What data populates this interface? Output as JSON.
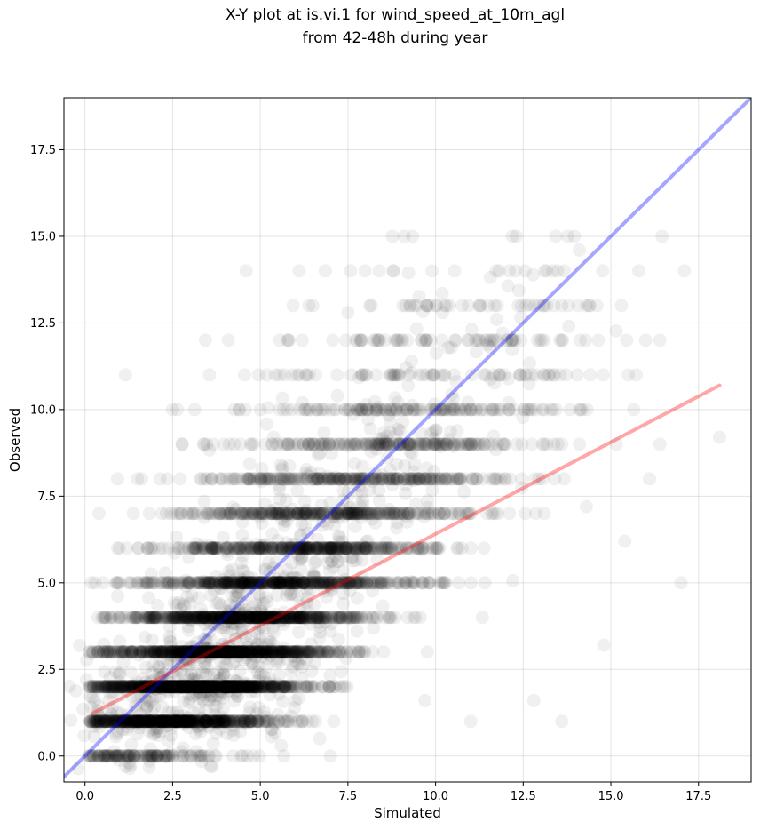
{
  "chart_data": {
    "type": "scatter",
    "title_lines": [
      "X-Y plot at is.vi.1 for wind_speed_at_10m_agl",
      "from 42-48h during year"
    ],
    "xlabel": "Simulated",
    "ylabel": "Observed",
    "xlim": [
      -0.6,
      19.0
    ],
    "ylim": [
      -0.75,
      19.0
    ],
    "xticks": [
      0.0,
      2.5,
      5.0,
      7.5,
      10.0,
      12.5,
      15.0,
      17.5
    ],
    "yticks": [
      0.0,
      2.5,
      5.0,
      7.5,
      10.0,
      12.5,
      15.0,
      17.5
    ],
    "grid": true,
    "point_color": "#000000",
    "point_alpha": 0.06,
    "observed_levels": [
      0,
      1,
      2,
      3,
      4,
      5,
      6,
      7,
      8,
      9,
      10,
      11,
      12,
      13,
      14,
      15
    ],
    "level_weights": [
      2,
      10,
      14,
      12,
      10,
      8,
      6,
      5,
      4,
      3,
      2,
      1,
      1,
      0.6,
      0.3,
      0.1
    ],
    "series": [
      {
        "kind": "scatter",
        "points": [
          [
            1.2,
            1.0
          ],
          [
            2.4,
            1.0
          ],
          [
            3.1,
            1.0
          ],
          [
            0.8,
            2.0
          ],
          [
            2.6,
            2.0
          ],
          [
            3.4,
            2.0
          ],
          [
            4.1,
            2.0
          ],
          [
            3.0,
            3.0
          ],
          [
            4.5,
            3.0
          ],
          [
            5.6,
            3.0
          ],
          [
            4.2,
            4.0
          ],
          [
            6.0,
            4.0
          ],
          [
            7.3,
            4.0
          ],
          [
            5.4,
            5.0
          ],
          [
            6.8,
            5.0
          ],
          [
            8.2,
            5.0
          ],
          [
            6.3,
            6.0
          ],
          [
            8.0,
            6.0
          ],
          [
            9.4,
            6.0
          ],
          [
            7.6,
            7.0
          ],
          [
            8.7,
            7.0
          ],
          [
            9.1,
            8.0
          ],
          [
            10.3,
            8.0
          ],
          [
            9.5,
            9.0
          ],
          [
            11.2,
            9.0
          ],
          [
            10.0,
            10.0
          ],
          [
            11.8,
            10.0
          ],
          [
            12.4,
            11.0
          ],
          [
            12.9,
            12.0
          ],
          [
            13.6,
            13.0
          ],
          [
            14.1,
            14.6
          ],
          [
            12.3,
            15.0
          ],
          [
            4.6,
            14.0
          ],
          [
            18.1,
            9.2
          ],
          [
            17.0,
            5.0
          ],
          [
            15.4,
            6.2
          ],
          [
            14.8,
            3.2
          ],
          [
            15.5,
            11.0
          ],
          [
            16.1,
            8.0
          ],
          [
            16.4,
            9.0
          ],
          [
            14.3,
            7.2
          ],
          [
            13.4,
            8.0
          ],
          [
            2.5,
            10.0
          ],
          [
            1.5,
            8.0
          ],
          [
            0.4,
            7.0
          ],
          [
            13.6,
            1.0
          ],
          [
            12.8,
            1.6
          ],
          [
            11.0,
            1.0
          ],
          [
            9.7,
            1.6
          ],
          [
            6.7,
            0.5
          ],
          [
            1.0,
            0.0
          ],
          [
            2.7,
            0.0
          ],
          [
            4.5,
            0.0
          ],
          [
            5.6,
            0.3
          ],
          [
            7.0,
            0.0
          ],
          [
            3.4,
            9.0
          ],
          [
            5.8,
            12.0
          ],
          [
            7.5,
            12.8
          ],
          [
            8.9,
            12.0
          ],
          [
            10.2,
            12.8
          ],
          [
            11.5,
            13.0
          ],
          [
            12.1,
            14.0
          ],
          [
            13.8,
            12.4
          ],
          [
            14.3,
            13.0
          ],
          [
            6.2,
            10.2
          ],
          [
            7.2,
            10.4
          ]
        ]
      },
      {
        "kind": "line",
        "name": "identity",
        "color": "#0000ff",
        "alpha": 0.35,
        "points": [
          [
            -0.6,
            -0.6
          ],
          [
            19.0,
            19.0
          ]
        ]
      },
      {
        "kind": "line",
        "name": "regression",
        "color": "#ff0000",
        "alpha": 0.35,
        "points": [
          [
            0.2,
            1.22
          ],
          [
            18.1,
            10.7
          ]
        ]
      }
    ]
  }
}
